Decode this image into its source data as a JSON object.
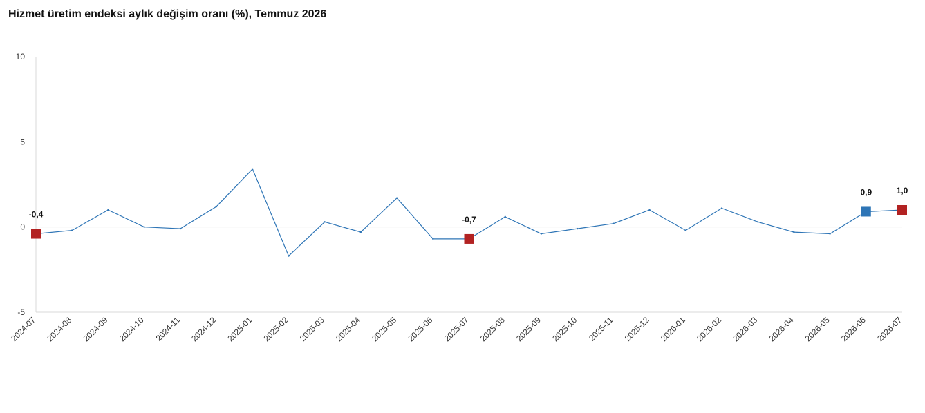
{
  "chart_data": {
    "type": "line",
    "title": "Hizmet üretim endeksi aylık değişim oranı (%), Temmuz 2026",
    "xlabel": "",
    "ylabel": "",
    "ylim": [
      -5,
      10
    ],
    "yticks": [
      "10",
      "5",
      "0",
      "-5"
    ],
    "ytick_values": [
      10,
      5,
      0,
      -5
    ],
    "grid": false,
    "legend": "none",
    "line_color": "#2e75b6",
    "categories": [
      "2024-07",
      "2024-08",
      "2024-09",
      "2024-10",
      "2024-11",
      "2024-12",
      "2025-01",
      "2025-02",
      "2025-03",
      "2025-04",
      "2025-05",
      "2025-06",
      "2025-07",
      "2025-08",
      "2025-09",
      "2025-10",
      "2025-11",
      "2025-12",
      "2026-01",
      "2026-02",
      "2026-03",
      "2026-04",
      "2026-05",
      "2026-06",
      "2026-07"
    ],
    "values": [
      -0.4,
      -0.2,
      1.0,
      0.0,
      -0.1,
      1.2,
      3.4,
      -1.7,
      0.3,
      -0.3,
      1.7,
      -0.7,
      -0.7,
      0.6,
      -0.4,
      -0.1,
      0.2,
      1.0,
      -0.2,
      1.1,
      0.3,
      -0.3,
      -0.4,
      0.9,
      1.0
    ],
    "markers": [
      {
        "index": 0,
        "label": "-0,4",
        "color": "#b22222"
      },
      {
        "index": 12,
        "label": "-0,7",
        "color": "#b22222"
      },
      {
        "index": 23,
        "label": "0,9",
        "color": "#2e75b6"
      },
      {
        "index": 24,
        "label": "1,0",
        "color": "#b22222"
      }
    ]
  }
}
